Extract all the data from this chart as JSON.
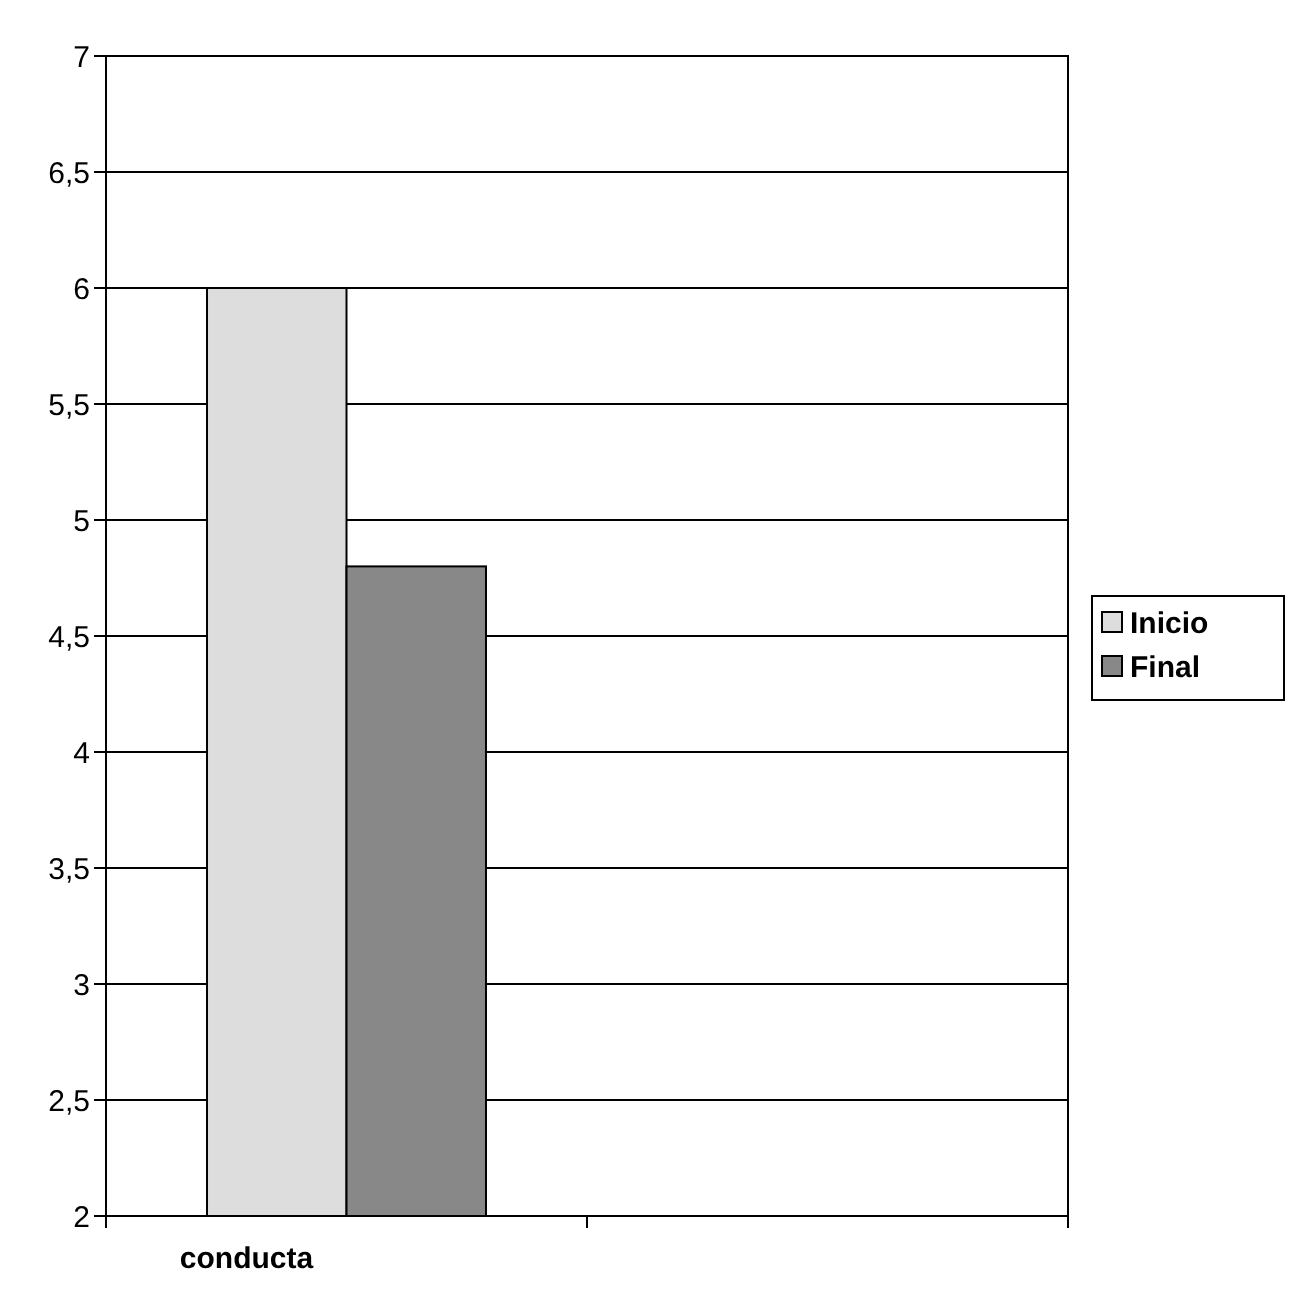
{
  "chart_data": {
    "type": "bar",
    "categories": [
      "conducta",
      null
    ],
    "series": [
      {
        "name": "Inicio",
        "color": "#dddddd",
        "values": [
          6,
          null
        ]
      },
      {
        "name": "Final",
        "color": "#888888",
        "values": [
          4.8,
          null
        ]
      }
    ],
    "ylim": [
      2,
      7
    ],
    "yticks": [
      2,
      {
        "value": 2.5,
        "label": "2,5"
      },
      3,
      {
        "value": 3.5,
        "label": "3,5"
      },
      4,
      {
        "value": 4.5,
        "label": "4,5"
      },
      5,
      {
        "value": 5.5,
        "label": "5,5"
      },
      6,
      {
        "value": 6.5,
        "label": "6,5"
      },
      7
    ],
    "grid": "y",
    "legend": "right"
  }
}
